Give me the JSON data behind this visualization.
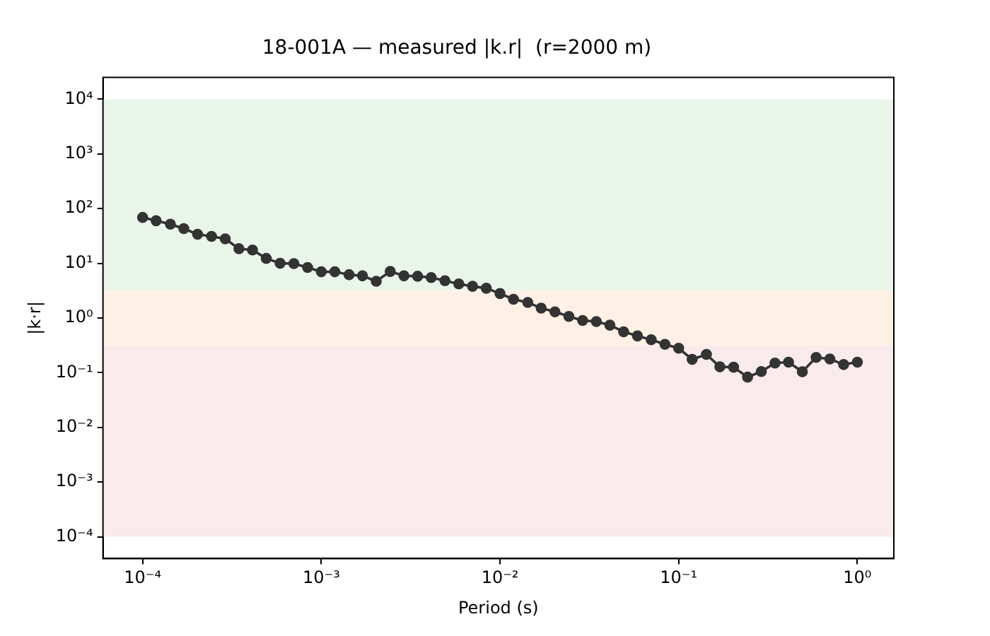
{
  "chart_data": {
    "type": "line",
    "title": "18-001A — measured |k.r|  (r=2000 m)",
    "xlabel": "Period (s)",
    "ylabel": "|k·r|",
    "x": [
      0.0001,
      0.000119,
      0.000143,
      0.00017,
      0.000203,
      0.000243,
      0.00029,
      0.000346,
      0.000412,
      0.000492,
      0.000588,
      0.000702,
      0.000838,
      0.001,
      0.00119,
      0.00143,
      0.0017,
      0.00203,
      0.00243,
      0.0029,
      0.00346,
      0.00412,
      0.00492,
      0.00588,
      0.00702,
      0.00838,
      0.01,
      0.0119,
      0.0143,
      0.017,
      0.0203,
      0.0243,
      0.029,
      0.0346,
      0.0412,
      0.0492,
      0.0588,
      0.0702,
      0.0838,
      0.1,
      0.119,
      0.143,
      0.17,
      0.203,
      0.243,
      0.29,
      0.346,
      0.412,
      0.492,
      0.588,
      0.702,
      0.838,
      1
    ],
    "series": [
      {
        "color": "#333333",
        "values": [
          69,
          60,
          52,
          43,
          34,
          31,
          28,
          18.5,
          17.5,
          12.3,
          10,
          9.9,
          8.4,
          7,
          7,
          6.2,
          5.9,
          4.7,
          7.1,
          5.9,
          5.8,
          5.5,
          4.8,
          4.2,
          3.8,
          3.5,
          2.8,
          2.2,
          1.92,
          1.52,
          1.3,
          1.07,
          0.9,
          0.86,
          0.74,
          0.56,
          0.47,
          0.4,
          0.33,
          0.28,
          0.175,
          0.216,
          0.128,
          0.126,
          0.083,
          0.105,
          0.15,
          0.156,
          0.104,
          0.19,
          0.178,
          0.141,
          0.156
        ]
      }
    ],
    "log": "xy",
    "xlim": [
      6e-05,
      1.6
    ],
    "ylim": [
      4e-05,
      25000
    ],
    "xticks": [
      {
        "value": 0.0001,
        "label": "10⁻⁴"
      },
      {
        "value": 0.001,
        "label": "10⁻³"
      },
      {
        "value": 0.01,
        "label": "10⁻²"
      },
      {
        "value": 0.1,
        "label": "10⁻¹"
      },
      {
        "value": 1,
        "label": "10⁰"
      }
    ],
    "yticks": [
      {
        "value": 0.0001,
        "label": "10⁻⁴"
      },
      {
        "value": 0.001,
        "label": "10⁻³"
      },
      {
        "value": 0.01,
        "label": "10⁻²"
      },
      {
        "value": 0.1,
        "label": "10⁻¹"
      },
      {
        "value": 1,
        "label": "10⁰"
      },
      {
        "value": 10,
        "label": "10¹"
      },
      {
        "value": 100,
        "label": "10²"
      },
      {
        "value": 1000,
        "label": "10³"
      },
      {
        "value": 10000,
        "label": "10⁴"
      }
    ],
    "bands": [
      {
        "axis": "y",
        "from": 3.16,
        "to": 10000,
        "color": "#eaf5ea"
      },
      {
        "axis": "y",
        "from": 0.316,
        "to": 3.16,
        "color": "#fef0e4"
      },
      {
        "axis": "y",
        "from": 0.0001,
        "to": 0.316,
        "color": "#f9eaeb"
      }
    ],
    "grid": false,
    "legend": false,
    "marker": "circle",
    "line_style": "solid"
  }
}
